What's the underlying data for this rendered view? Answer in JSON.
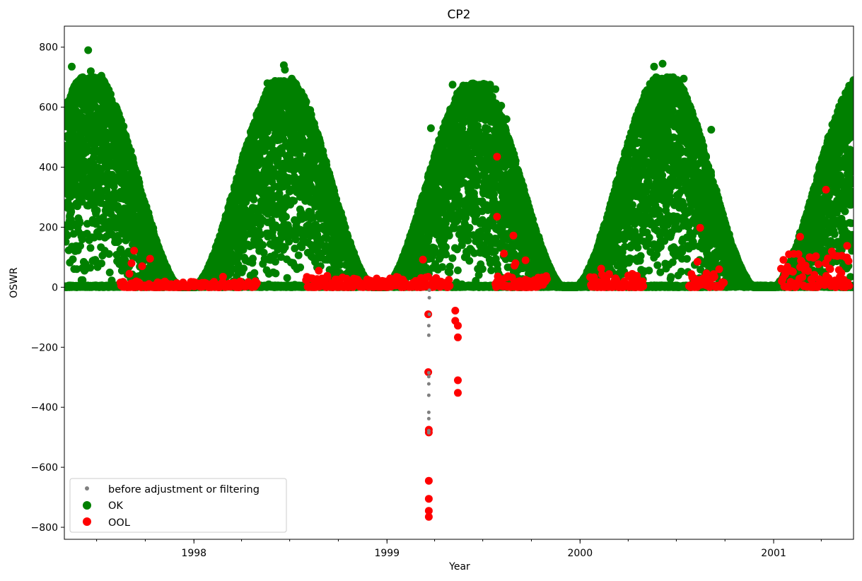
{
  "chart_data": {
    "type": "scatter",
    "title": "CP2",
    "xlabel": "Year",
    "ylabel": "OSWR",
    "xlim": [
      "1997-05-01",
      "2001-06-01"
    ],
    "ylim": [
      -840,
      870
    ],
    "x_major_ticks": [
      {
        "date": "1998-01-01",
        "label": "1998"
      },
      {
        "date": "1999-01-01",
        "label": "1999"
      },
      {
        "date": "2000-01-01",
        "label": "2000"
      },
      {
        "date": "2001-01-01",
        "label": "2001"
      }
    ],
    "y_ticks": [
      {
        "value": 800,
        "label": "800"
      },
      {
        "value": 600,
        "label": "600"
      },
      {
        "value": 400,
        "label": "400"
      },
      {
        "value": 200,
        "label": "200"
      },
      {
        "value": 0,
        "label": "0"
      },
      {
        "value": -200,
        "label": "−200"
      },
      {
        "value": -400,
        "label": "−400"
      },
      {
        "value": -600,
        "label": "−600"
      },
      {
        "value": -800,
        "label": "−800"
      }
    ],
    "legend_position": "lower-left",
    "colors": {
      "before": "#808080",
      "ok": "#008000",
      "ool": "#ff0000"
    },
    "series": [
      {
        "name": "before adjustment or filtering",
        "marker": "small-dot",
        "points": [
          [
            "1999-03-22",
            -10
          ],
          [
            "1999-03-22",
            -35
          ],
          [
            "1999-03-22",
            -90
          ],
          [
            "1999-03-21",
            -128
          ],
          [
            "1999-03-21",
            -160
          ],
          [
            "1999-03-21",
            -285
          ],
          [
            "1999-03-21",
            -298
          ],
          [
            "1999-03-21",
            -322
          ],
          [
            "1999-03-21",
            -360
          ],
          [
            "1999-03-21",
            -417
          ],
          [
            "1999-03-21",
            -438
          ],
          [
            "1999-03-21",
            -478
          ],
          [
            "1999-03-21",
            -485
          ]
        ]
      },
      {
        "name": "OK",
        "marker": "large-dot",
        "seasonal_peaks": [
          {
            "date": "1997-06-20",
            "value": 700
          },
          {
            "date": "1998-06-20",
            "value": 690
          },
          {
            "date": "1999-06-15",
            "value": 680
          },
          {
            "date": "2000-06-10",
            "value": 700
          },
          {
            "date": "2001-06-20",
            "value": 690
          }
        ],
        "points": [
          [
            "1997-05-15",
            735
          ],
          [
            "1997-06-15",
            790
          ],
          [
            "1997-06-20",
            720
          ],
          [
            "1997-07-10",
            705
          ],
          [
            "1998-05-20",
            680
          ],
          [
            "1998-06-20",
            740
          ],
          [
            "1998-06-22",
            725
          ],
          [
            "1998-07-05",
            695
          ],
          [
            "1999-03-25",
            530
          ],
          [
            "1999-05-05",
            675
          ],
          [
            "1999-07-15",
            675
          ],
          [
            "1999-07-25",
            660
          ],
          [
            "1999-08-05",
            605
          ],
          [
            "1999-08-15",
            560
          ],
          [
            "2000-05-20",
            735
          ],
          [
            "2000-06-05",
            745
          ],
          [
            "2000-06-25",
            700
          ],
          [
            "2000-07-15",
            695
          ],
          [
            "2000-09-05",
            525
          ],
          [
            "2001-06-01",
            690
          ]
        ]
      },
      {
        "name": "OOL",
        "marker": "large-dot",
        "points": [
          [
            "1997-09-10",
            122
          ],
          [
            "1997-10-10",
            95
          ],
          [
            "1997-09-25",
            70
          ],
          [
            "1997-08-20",
            18
          ],
          [
            "1997-09-01",
            45
          ],
          [
            "1997-09-05",
            80
          ],
          [
            "1998-02-25",
            35
          ],
          [
            "1998-08-25",
            55
          ],
          [
            "1998-09-10",
            38
          ],
          [
            "1999-03-10",
            92
          ],
          [
            "1999-03-21",
            8
          ],
          [
            "1999-03-20",
            -90
          ],
          [
            "1999-03-20",
            -283
          ],
          [
            "1999-03-21",
            -475
          ],
          [
            "1999-03-21",
            -484
          ],
          [
            "1999-03-21",
            -645
          ],
          [
            "1999-03-21",
            -705
          ],
          [
            "1999-03-21",
            -745
          ],
          [
            "1999-03-21",
            -765
          ],
          [
            "1999-05-10",
            -78
          ],
          [
            "1999-05-10",
            -112
          ],
          [
            "1999-05-15",
            -128
          ],
          [
            "1999-05-15",
            -167
          ],
          [
            "1999-05-15",
            -310
          ],
          [
            "1999-05-15",
            -352
          ],
          [
            "1999-07-28",
            435
          ],
          [
            "1999-07-28",
            235
          ],
          [
            "1999-08-10",
            112
          ],
          [
            "1999-08-28",
            172
          ],
          [
            "1999-08-30",
            72
          ],
          [
            "1999-09-01",
            80
          ],
          [
            "1999-09-20",
            90
          ],
          [
            "2000-02-10",
            62
          ],
          [
            "2000-08-15",
            198
          ],
          [
            "2000-08-10",
            85
          ],
          [
            "2001-02-20",
            168
          ],
          [
            "2001-04-10",
            325
          ],
          [
            "2001-05-10",
            105
          ],
          [
            "2001-05-20",
            138
          ]
        ]
      }
    ],
    "ool_bands": [
      {
        "start": "1997-08-15",
        "end": "1998-04-30",
        "max": 20
      },
      {
        "start": "1998-08-01",
        "end": "1999-04-30",
        "max": 35
      },
      {
        "start": "1999-07-25",
        "end": "1999-10-31",
        "max": 40
      },
      {
        "start": "2000-01-20",
        "end": "2000-04-30",
        "max": 45
      },
      {
        "start": "2000-07-25",
        "end": "2000-09-30",
        "max": 60
      },
      {
        "start": "2001-01-15",
        "end": "2001-05-25",
        "max": 120
      }
    ]
  }
}
